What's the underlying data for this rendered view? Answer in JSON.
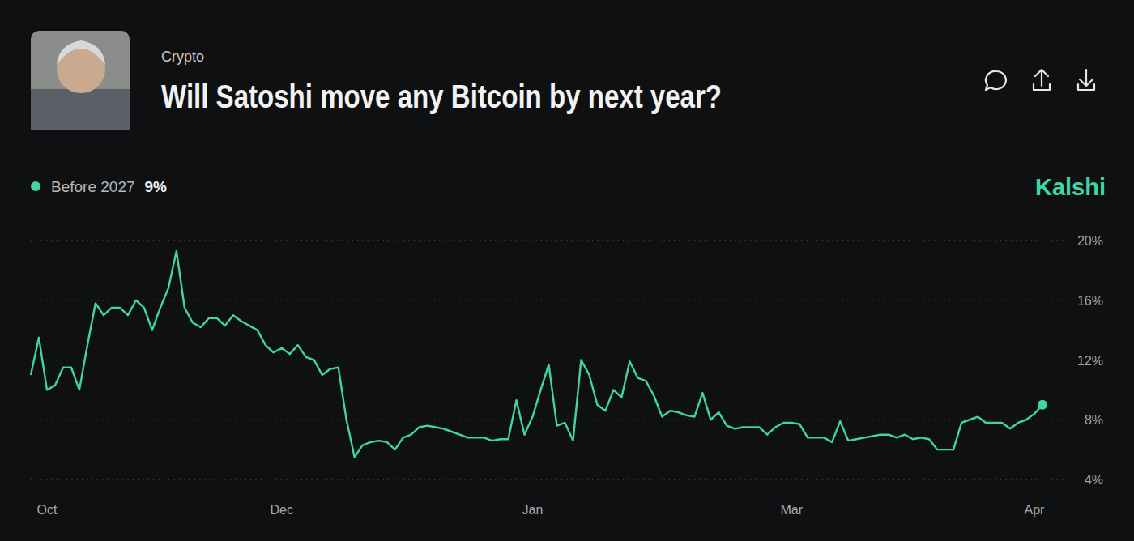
{
  "chart_data": {
    "type": "line",
    "category": "Crypto",
    "title": "Will Satoshi move any Bitcoin by next year?",
    "source": "Kalshi",
    "categories": [
      null,
      null,
      "Oct",
      null,
      null,
      null,
      null,
      null,
      null,
      null,
      null,
      null,
      null,
      null,
      null,
      null,
      null,
      null,
      null,
      null,
      null,
      null,
      null,
      null,
      null,
      null,
      null,
      null,
      null,
      null,
      null,
      "Dec",
      null,
      null,
      null,
      null,
      null,
      null,
      null,
      null,
      null,
      null,
      null,
      null,
      null,
      null,
      null,
      null,
      null,
      null,
      null,
      null,
      null,
      null,
      null,
      null,
      null,
      null,
      null,
      null,
      null,
      null,
      "Jan",
      null,
      null,
      null,
      null,
      null,
      null,
      null,
      null,
      null,
      null,
      null,
      null,
      null,
      null,
      null,
      null,
      null,
      null,
      null,
      null,
      null,
      null,
      null,
      null,
      null,
      null,
      null,
      null,
      null,
      null,
      null,
      "Mar",
      null,
      null,
      null,
      null,
      null,
      null,
      null,
      null,
      null,
      null,
      null,
      null,
      null,
      null,
      null,
      null,
      null,
      null,
      null,
      null,
      null,
      null,
      null,
      null,
      null,
      null,
      null,
      null,
      null,
      "Apr",
      null
    ],
    "series": [
      {
        "name": "Before 2027",
        "last_label": "9%",
        "color": "#3fd6a1",
        "values": [
          11,
          13.5,
          10,
          10.3,
          11.5,
          11.5,
          10,
          13,
          15.8,
          15,
          15.5,
          15.5,
          15,
          16,
          15.5,
          14,
          15.5,
          16.8,
          19.3,
          15.5,
          14.5,
          14.2,
          14.8,
          14.8,
          14.3,
          15,
          14.6,
          14.3,
          14,
          13,
          12.5,
          12.8,
          12.4,
          13,
          12.2,
          12,
          11,
          11.4,
          11.5,
          8,
          5.5,
          6.3,
          6.5,
          6.6,
          6.5,
          6,
          6.8,
          7,
          7.5,
          7.6,
          7.5,
          7.4,
          7.2,
          7,
          6.8,
          6.8,
          6.8,
          6.6,
          6.7,
          6.7,
          9.3,
          7,
          8.2,
          10,
          11.7,
          7.6,
          7.8,
          6.6,
          12,
          11,
          9,
          8.6,
          10,
          9.5,
          11.9,
          10.8,
          10.6,
          9.6,
          8.2,
          8.6,
          8.5,
          8.3,
          8.2,
          9.8,
          8,
          8.5,
          7.6,
          7.4,
          7.5,
          7.5,
          7.5,
          7,
          7.5,
          7.8,
          7.8,
          7.7,
          6.8,
          6.8,
          6.8,
          6.5,
          7.9,
          6.6,
          6.7,
          6.8,
          6.9,
          7,
          7,
          6.8,
          7,
          6.7,
          6.8,
          6.7,
          6,
          6,
          6,
          7.8,
          8,
          8.2,
          7.8,
          7.8,
          7.8,
          7.4,
          7.8,
          8,
          8.4,
          9
        ]
      }
    ],
    "ylim": [
      4,
      20
    ],
    "yticks": [
      {
        "value": 4,
        "label": "4%"
      },
      {
        "value": 8,
        "label": "8%"
      },
      {
        "value": 12,
        "label": "12%"
      },
      {
        "value": 16,
        "label": "16%"
      },
      {
        "value": 20,
        "label": "20%"
      }
    ],
    "grid": true,
    "legend": "top-left"
  }
}
